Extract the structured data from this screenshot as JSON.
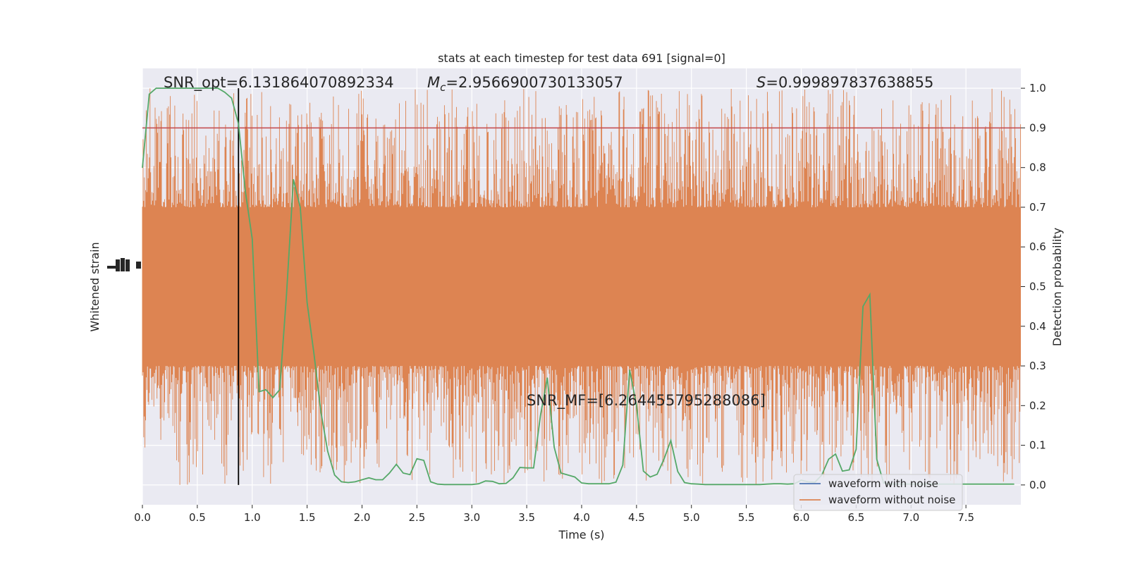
{
  "chart_data": {
    "type": "line",
    "title": "stats at each timestep for test data 691 [signal=0]",
    "xlabel": "Time (s)",
    "ylabel_left": "Whitened strain",
    "ylabel_right": "Detection probability",
    "xlim": [
      0,
      8
    ],
    "ylim_right": [
      -0.05,
      1.05
    ],
    "x_ticks": [
      0.0,
      0.5,
      1.0,
      1.5,
      2.0,
      2.5,
      3.0,
      3.5,
      4.0,
      4.5,
      5.0,
      5.5,
      6.0,
      6.5,
      7.0,
      7.5
    ],
    "x_tick_labels": [
      "0.0",
      "0.5",
      "1.0",
      "1.5",
      "2.0",
      "2.5",
      "3.0",
      "3.5",
      "4.0",
      "4.5",
      "5.0",
      "5.5",
      "6.0",
      "6.5",
      "7.0",
      "7.5"
    ],
    "y_right_ticks": [
      0.0,
      0.1,
      0.2,
      0.3,
      0.4,
      0.5,
      0.6,
      0.7,
      0.8,
      0.9,
      1.0
    ],
    "y_right_tick_labels": [
      "0.0",
      "0.1",
      "0.2",
      "0.3",
      "0.4",
      "0.5",
      "0.6",
      "0.7",
      "0.8",
      "0.9",
      "1.0"
    ],
    "grid": true,
    "legend_position": "bottom-right",
    "legend": [
      {
        "label": "waveform with noise",
        "color": "#4c72b0"
      },
      {
        "label": "waveform without noise",
        "color": "#dd8452"
      }
    ],
    "annotations": {
      "snr_opt": "SNR_opt=6.131864070892334",
      "mc_symbol": "M",
      "mc_sub": "c",
      "mc_value": "=2.9566900730133057",
      "s_symbol": "S",
      "s_value": "=0.999897837638855",
      "snr_mf": "SNR_MF=[6.264455795288086]"
    },
    "threshold": 0.9,
    "vertical_marker_x": 0.875,
    "colors": {
      "noise": "#dd8452",
      "probability": "#55a868",
      "threshold": "#c44e52",
      "marker": "#000000",
      "panel_bg": "#eaeaf2",
      "grid": "#ffffff"
    },
    "series": [
      {
        "name": "Detection probability",
        "x": [
          0.0,
          0.0625,
          0.125,
          0.1875,
          0.25,
          0.3125,
          0.375,
          0.4375,
          0.5,
          0.5625,
          0.625,
          0.6875,
          0.75,
          0.8125,
          0.875,
          0.9375,
          1.0,
          1.0625,
          1.125,
          1.1875,
          1.25,
          1.3125,
          1.375,
          1.4375,
          1.5,
          1.5625,
          1.625,
          1.6875,
          1.75,
          1.8125,
          1.875,
          1.9375,
          2.0,
          2.0625,
          2.125,
          2.1875,
          2.25,
          2.3125,
          2.375,
          2.4375,
          2.5,
          2.5625,
          2.625,
          2.6875,
          2.75,
          2.8125,
          2.875,
          2.9375,
          3.0,
          3.0625,
          3.125,
          3.1875,
          3.25,
          3.3125,
          3.375,
          3.4375,
          3.5,
          3.5625,
          3.625,
          3.6875,
          3.75,
          3.8125,
          3.875,
          3.9375,
          4.0,
          4.0625,
          4.125,
          4.1875,
          4.25,
          4.3125,
          4.375,
          4.4375,
          4.5,
          4.5625,
          4.625,
          4.6875,
          4.75,
          4.8125,
          4.875,
          4.9375,
          5.0,
          5.0625,
          5.125,
          5.1875,
          5.25,
          5.3125,
          5.375,
          5.4375,
          5.5,
          5.5625,
          5.625,
          5.6875,
          5.75,
          5.8125,
          5.875,
          5.9375,
          6.0,
          6.0625,
          6.125,
          6.1875,
          6.25,
          6.3125,
          6.375,
          6.4375,
          6.5,
          6.5625,
          6.625,
          6.6875,
          6.75,
          6.8125,
          6.875,
          6.9375,
          7.0,
          7.0625,
          7.125,
          7.1875,
          7.25,
          7.3125,
          7.375,
          7.4375,
          7.5,
          7.5625,
          7.625,
          7.6875,
          7.75,
          7.8125,
          7.875,
          7.9375
        ],
        "y": [
          0.8,
          0.985,
          1.0,
          1.0,
          1.0,
          1.0,
          1.0,
          1.0,
          1.0,
          1.0,
          1.0,
          1.0,
          0.99,
          0.975,
          0.91,
          0.74,
          0.62,
          0.235,
          0.24,
          0.22,
          0.24,
          0.48,
          0.77,
          0.7,
          0.46,
          0.33,
          0.185,
          0.085,
          0.025,
          0.008,
          0.006,
          0.008,
          0.013,
          0.018,
          0.013,
          0.013,
          0.03,
          0.052,
          0.03,
          0.026,
          0.066,
          0.062,
          0.008,
          0.002,
          0.001,
          0.001,
          0.001,
          0.001,
          0.001,
          0.003,
          0.01,
          0.009,
          0.003,
          0.004,
          0.018,
          0.044,
          0.043,
          0.043,
          0.175,
          0.27,
          0.095,
          0.03,
          0.025,
          0.02,
          0.005,
          0.003,
          0.003,
          0.003,
          0.003,
          0.007,
          0.05,
          0.29,
          0.2,
          0.035,
          0.02,
          0.027,
          0.065,
          0.112,
          0.034,
          0.006,
          0.003,
          0.002,
          0.001,
          0.001,
          0.001,
          0.001,
          0.001,
          0.001,
          0.001,
          0.001,
          0.001,
          0.002,
          0.003,
          0.003,
          0.002,
          0.003,
          0.012,
          0.008,
          0.007,
          0.025,
          0.065,
          0.078,
          0.035,
          0.038,
          0.09,
          0.45,
          0.48,
          0.065,
          0.005,
          0.002,
          0.002,
          0.002,
          0.002,
          0.002,
          0.002,
          0.002,
          0.002,
          0.002,
          0.002,
          0.002,
          0.002,
          0.002,
          0.002,
          0.002,
          0.002,
          0.002,
          0.002,
          0.002
        ]
      },
      {
        "name": "waveform without noise",
        "envelope_core": [
          0.3,
          0.7
        ],
        "spike_extremes": [
          0.0,
          1.0
        ]
      }
    ]
  }
}
